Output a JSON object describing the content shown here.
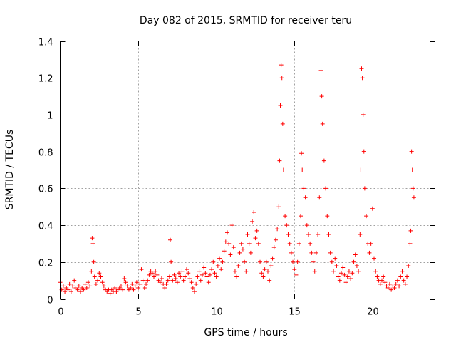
{
  "chart_data": {
    "type": "scatter",
    "title": "Day 082 of 2015, SRMTID for receiver teru",
    "xlabel": "GPS time / hours",
    "ylabel": "SRMTID / TECUs",
    "xlim": [
      0,
      24
    ],
    "ylim": [
      0,
      1.4
    ],
    "xticks": [
      0,
      5,
      10,
      15,
      20
    ],
    "xtick_labels": [
      "0",
      "5",
      "10",
      "15",
      "20"
    ],
    "yticks": [
      0,
      0.2,
      0.4,
      0.6,
      0.8,
      1,
      1.2,
      1.4
    ],
    "ytick_labels": [
      "0",
      "0.2",
      "0.4",
      "0.6",
      "0.8",
      "1",
      "1.2",
      "1.4"
    ],
    "grid": true,
    "marker": "plus",
    "colors": {
      "series": "#ff0000",
      "grid": "#a0a0a0",
      "axis": "#000000"
    },
    "series": [
      {
        "name": "SRMTID",
        "points": [
          [
            0.0,
            0.09
          ],
          [
            0.1,
            0.05
          ],
          [
            0.2,
            0.07
          ],
          [
            0.3,
            0.04
          ],
          [
            0.4,
            0.06
          ],
          [
            0.5,
            0.05
          ],
          [
            0.6,
            0.08
          ],
          [
            0.7,
            0.04
          ],
          [
            0.8,
            0.07
          ],
          [
            0.9,
            0.1
          ],
          [
            1.0,
            0.06
          ],
          [
            1.1,
            0.05
          ],
          [
            1.2,
            0.07
          ],
          [
            1.3,
            0.04
          ],
          [
            1.4,
            0.06
          ],
          [
            1.5,
            0.05
          ],
          [
            1.6,
            0.08
          ],
          [
            1.7,
            0.06
          ],
          [
            1.8,
            0.09
          ],
          [
            1.9,
            0.07
          ],
          [
            2.0,
            0.15
          ],
          [
            2.05,
            0.33
          ],
          [
            2.1,
            0.3
          ],
          [
            2.15,
            0.2
          ],
          [
            2.2,
            0.12
          ],
          [
            2.3,
            0.08
          ],
          [
            2.4,
            0.1
          ],
          [
            2.5,
            0.14
          ],
          [
            2.6,
            0.12
          ],
          [
            2.7,
            0.09
          ],
          [
            2.8,
            0.07
          ],
          [
            2.9,
            0.05
          ],
          [
            3.0,
            0.04
          ],
          [
            3.1,
            0.05
          ],
          [
            3.2,
            0.03
          ],
          [
            3.3,
            0.05
          ],
          [
            3.4,
            0.04
          ],
          [
            3.5,
            0.06
          ],
          [
            3.6,
            0.04
          ],
          [
            3.7,
            0.05
          ],
          [
            3.8,
            0.06
          ],
          [
            3.9,
            0.07
          ],
          [
            4.0,
            0.05
          ],
          [
            4.1,
            0.11
          ],
          [
            4.2,
            0.09
          ],
          [
            4.3,
            0.07
          ],
          [
            4.4,
            0.05
          ],
          [
            4.5,
            0.06
          ],
          [
            4.6,
            0.08
          ],
          [
            4.7,
            0.05
          ],
          [
            4.8,
            0.07
          ],
          [
            4.9,
            0.09
          ],
          [
            5.0,
            0.06
          ],
          [
            5.1,
            0.08
          ],
          [
            5.2,
            0.16
          ],
          [
            5.3,
            0.1
          ],
          [
            5.4,
            0.06
          ],
          [
            5.5,
            0.08
          ],
          [
            5.6,
            0.1
          ],
          [
            5.7,
            0.13
          ],
          [
            5.8,
            0.15
          ],
          [
            5.9,
            0.14
          ],
          [
            6.0,
            0.12
          ],
          [
            6.1,
            0.15
          ],
          [
            6.2,
            0.13
          ],
          [
            6.3,
            0.1
          ],
          [
            6.4,
            0.09
          ],
          [
            6.5,
            0.11
          ],
          [
            6.6,
            0.08
          ],
          [
            6.7,
            0.06
          ],
          [
            6.8,
            0.08
          ],
          [
            6.9,
            0.1
          ],
          [
            7.0,
            0.12
          ],
          [
            7.05,
            0.32
          ],
          [
            7.1,
            0.2
          ],
          [
            7.2,
            0.1
          ],
          [
            7.3,
            0.13
          ],
          [
            7.4,
            0.11
          ],
          [
            7.5,
            0.09
          ],
          [
            7.6,
            0.14
          ],
          [
            7.7,
            0.12
          ],
          [
            7.8,
            0.15
          ],
          [
            7.9,
            0.1
          ],
          [
            8.0,
            0.12
          ],
          [
            8.1,
            0.16
          ],
          [
            8.2,
            0.14
          ],
          [
            8.3,
            0.11
          ],
          [
            8.4,
            0.09
          ],
          [
            8.5,
            0.06
          ],
          [
            8.6,
            0.04
          ],
          [
            8.7,
            0.08
          ],
          [
            8.8,
            0.12
          ],
          [
            8.9,
            0.15
          ],
          [
            9.0,
            0.1
          ],
          [
            9.1,
            0.13
          ],
          [
            9.2,
            0.17
          ],
          [
            9.3,
            0.14
          ],
          [
            9.4,
            0.12
          ],
          [
            9.5,
            0.09
          ],
          [
            9.6,
            0.13
          ],
          [
            9.7,
            0.16
          ],
          [
            9.8,
            0.2
          ],
          [
            9.9,
            0.14
          ],
          [
            10.0,
            0.12
          ],
          [
            10.1,
            0.18
          ],
          [
            10.2,
            0.22
          ],
          [
            10.3,
            0.16
          ],
          [
            10.4,
            0.2
          ],
          [
            10.5,
            0.26
          ],
          [
            10.6,
            0.31
          ],
          [
            10.7,
            0.36
          ],
          [
            10.8,
            0.3
          ],
          [
            10.9,
            0.24
          ],
          [
            11.0,
            0.4
          ],
          [
            11.1,
            0.28
          ],
          [
            11.2,
            0.15
          ],
          [
            11.3,
            0.12
          ],
          [
            11.4,
            0.18
          ],
          [
            11.5,
            0.25
          ],
          [
            11.6,
            0.3
          ],
          [
            11.7,
            0.27
          ],
          [
            11.8,
            0.2
          ],
          [
            11.9,
            0.15
          ],
          [
            12.0,
            0.35
          ],
          [
            12.1,
            0.3
          ],
          [
            12.2,
            0.25
          ],
          [
            12.3,
            0.42
          ],
          [
            12.4,
            0.47
          ],
          [
            12.5,
            0.33
          ],
          [
            12.6,
            0.37
          ],
          [
            12.7,
            0.3
          ],
          [
            12.8,
            0.2
          ],
          [
            12.9,
            0.14
          ],
          [
            13.0,
            0.12
          ],
          [
            13.1,
            0.16
          ],
          [
            13.2,
            0.2
          ],
          [
            13.3,
            0.15
          ],
          [
            13.4,
            0.1
          ],
          [
            13.5,
            0.18
          ],
          [
            13.6,
            0.22
          ],
          [
            13.7,
            0.28
          ],
          [
            13.8,
            0.32
          ],
          [
            13.9,
            0.38
          ],
          [
            14.0,
            0.5
          ],
          [
            14.05,
            0.75
          ],
          [
            14.1,
            1.05
          ],
          [
            14.15,
            1.27
          ],
          [
            14.2,
            1.2
          ],
          [
            14.25,
            0.95
          ],
          [
            14.3,
            0.7
          ],
          [
            14.4,
            0.45
          ],
          [
            14.5,
            0.4
          ],
          [
            14.6,
            0.35
          ],
          [
            14.7,
            0.3
          ],
          [
            14.8,
            0.25
          ],
          [
            14.9,
            0.2
          ],
          [
            15.0,
            0.16
          ],
          [
            15.1,
            0.13
          ],
          [
            15.2,
            0.2
          ],
          [
            15.3,
            0.3
          ],
          [
            15.4,
            0.45
          ],
          [
            15.45,
            0.79
          ],
          [
            15.5,
            0.7
          ],
          [
            15.6,
            0.6
          ],
          [
            15.7,
            0.55
          ],
          [
            15.8,
            0.4
          ],
          [
            15.9,
            0.35
          ],
          [
            16.0,
            0.3
          ],
          [
            16.1,
            0.25
          ],
          [
            16.2,
            0.2
          ],
          [
            16.3,
            0.15
          ],
          [
            16.4,
            0.25
          ],
          [
            16.5,
            0.35
          ],
          [
            16.6,
            0.55
          ],
          [
            16.7,
            1.24
          ],
          [
            16.75,
            1.1
          ],
          [
            16.8,
            0.95
          ],
          [
            16.9,
            0.75
          ],
          [
            17.0,
            0.6
          ],
          [
            17.1,
            0.45
          ],
          [
            17.2,
            0.35
          ],
          [
            17.3,
            0.25
          ],
          [
            17.4,
            0.2
          ],
          [
            17.5,
            0.15
          ],
          [
            17.6,
            0.22
          ],
          [
            17.7,
            0.18
          ],
          [
            17.8,
            0.12
          ],
          [
            17.9,
            0.1
          ],
          [
            18.0,
            0.14
          ],
          [
            18.1,
            0.17
          ],
          [
            18.2,
            0.13
          ],
          [
            18.3,
            0.09
          ],
          [
            18.4,
            0.12
          ],
          [
            18.5,
            0.15
          ],
          [
            18.6,
            0.11
          ],
          [
            18.7,
            0.14
          ],
          [
            18.8,
            0.2
          ],
          [
            18.9,
            0.24
          ],
          [
            19.0,
            0.18
          ],
          [
            19.1,
            0.15
          ],
          [
            19.2,
            0.35
          ],
          [
            19.25,
            0.7
          ],
          [
            19.3,
            1.25
          ],
          [
            19.35,
            1.2
          ],
          [
            19.4,
            1.0
          ],
          [
            19.45,
            0.8
          ],
          [
            19.5,
            0.6
          ],
          [
            19.6,
            0.45
          ],
          [
            19.7,
            0.3
          ],
          [
            19.8,
            0.25
          ],
          [
            19.9,
            0.3
          ],
          [
            20.0,
            0.49
          ],
          [
            20.1,
            0.22
          ],
          [
            20.2,
            0.15
          ],
          [
            20.3,
            0.12
          ],
          [
            20.4,
            0.1
          ],
          [
            20.5,
            0.08
          ],
          [
            20.6,
            0.1
          ],
          [
            20.7,
            0.12
          ],
          [
            20.8,
            0.09
          ],
          [
            20.9,
            0.07
          ],
          [
            21.0,
            0.06
          ],
          [
            21.1,
            0.08
          ],
          [
            21.2,
            0.05
          ],
          [
            21.3,
            0.07
          ],
          [
            21.4,
            0.06
          ],
          [
            21.5,
            0.08
          ],
          [
            21.6,
            0.1
          ],
          [
            21.7,
            0.07
          ],
          [
            21.8,
            0.12
          ],
          [
            21.9,
            0.15
          ],
          [
            22.0,
            0.1
          ],
          [
            22.1,
            0.08
          ],
          [
            22.2,
            0.12
          ],
          [
            22.3,
            0.18
          ],
          [
            22.4,
            0.3
          ],
          [
            22.45,
            0.37
          ],
          [
            22.5,
            0.8
          ],
          [
            22.55,
            0.7
          ],
          [
            22.6,
            0.6
          ],
          [
            22.65,
            0.55
          ]
        ]
      }
    ]
  }
}
